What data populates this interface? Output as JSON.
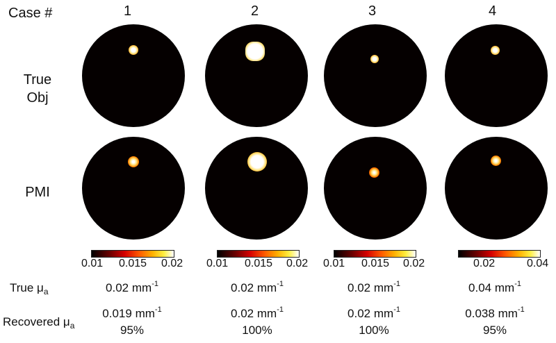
{
  "header": {
    "case_label": "Case #",
    "cases": [
      "1",
      "2",
      "3",
      "4"
    ]
  },
  "row_labels": {
    "true_obj_line1": "True",
    "true_obj_line2": "Obj",
    "pmi": "PMI"
  },
  "colormap": "hot",
  "colorbars": [
    {
      "ticks": [
        "0.01",
        "0.015",
        "0.02"
      ]
    },
    {
      "ticks": [
        "0.01",
        "0.015",
        "0.02"
      ]
    },
    {
      "ticks": [
        "0.01",
        "0.015",
        "0.02"
      ]
    },
    {
      "ticks": [
        "0.02",
        "0.04"
      ]
    }
  ],
  "bottom_table": {
    "true_mua_label": "True μ",
    "true_mua_sub": "a",
    "recovered_mua_label": "Recovered μ",
    "recovered_mua_sub": "a",
    "unit": "mm",
    "unit_exp": "-1",
    "true_values": [
      "0.02",
      "0.02",
      "0.02",
      "0.04"
    ],
    "recovered_values": [
      "0.019",
      "0.02",
      "0.02",
      "0.038"
    ],
    "recovered_percent": [
      "95%",
      "100%",
      "100%",
      "95%"
    ]
  }
}
